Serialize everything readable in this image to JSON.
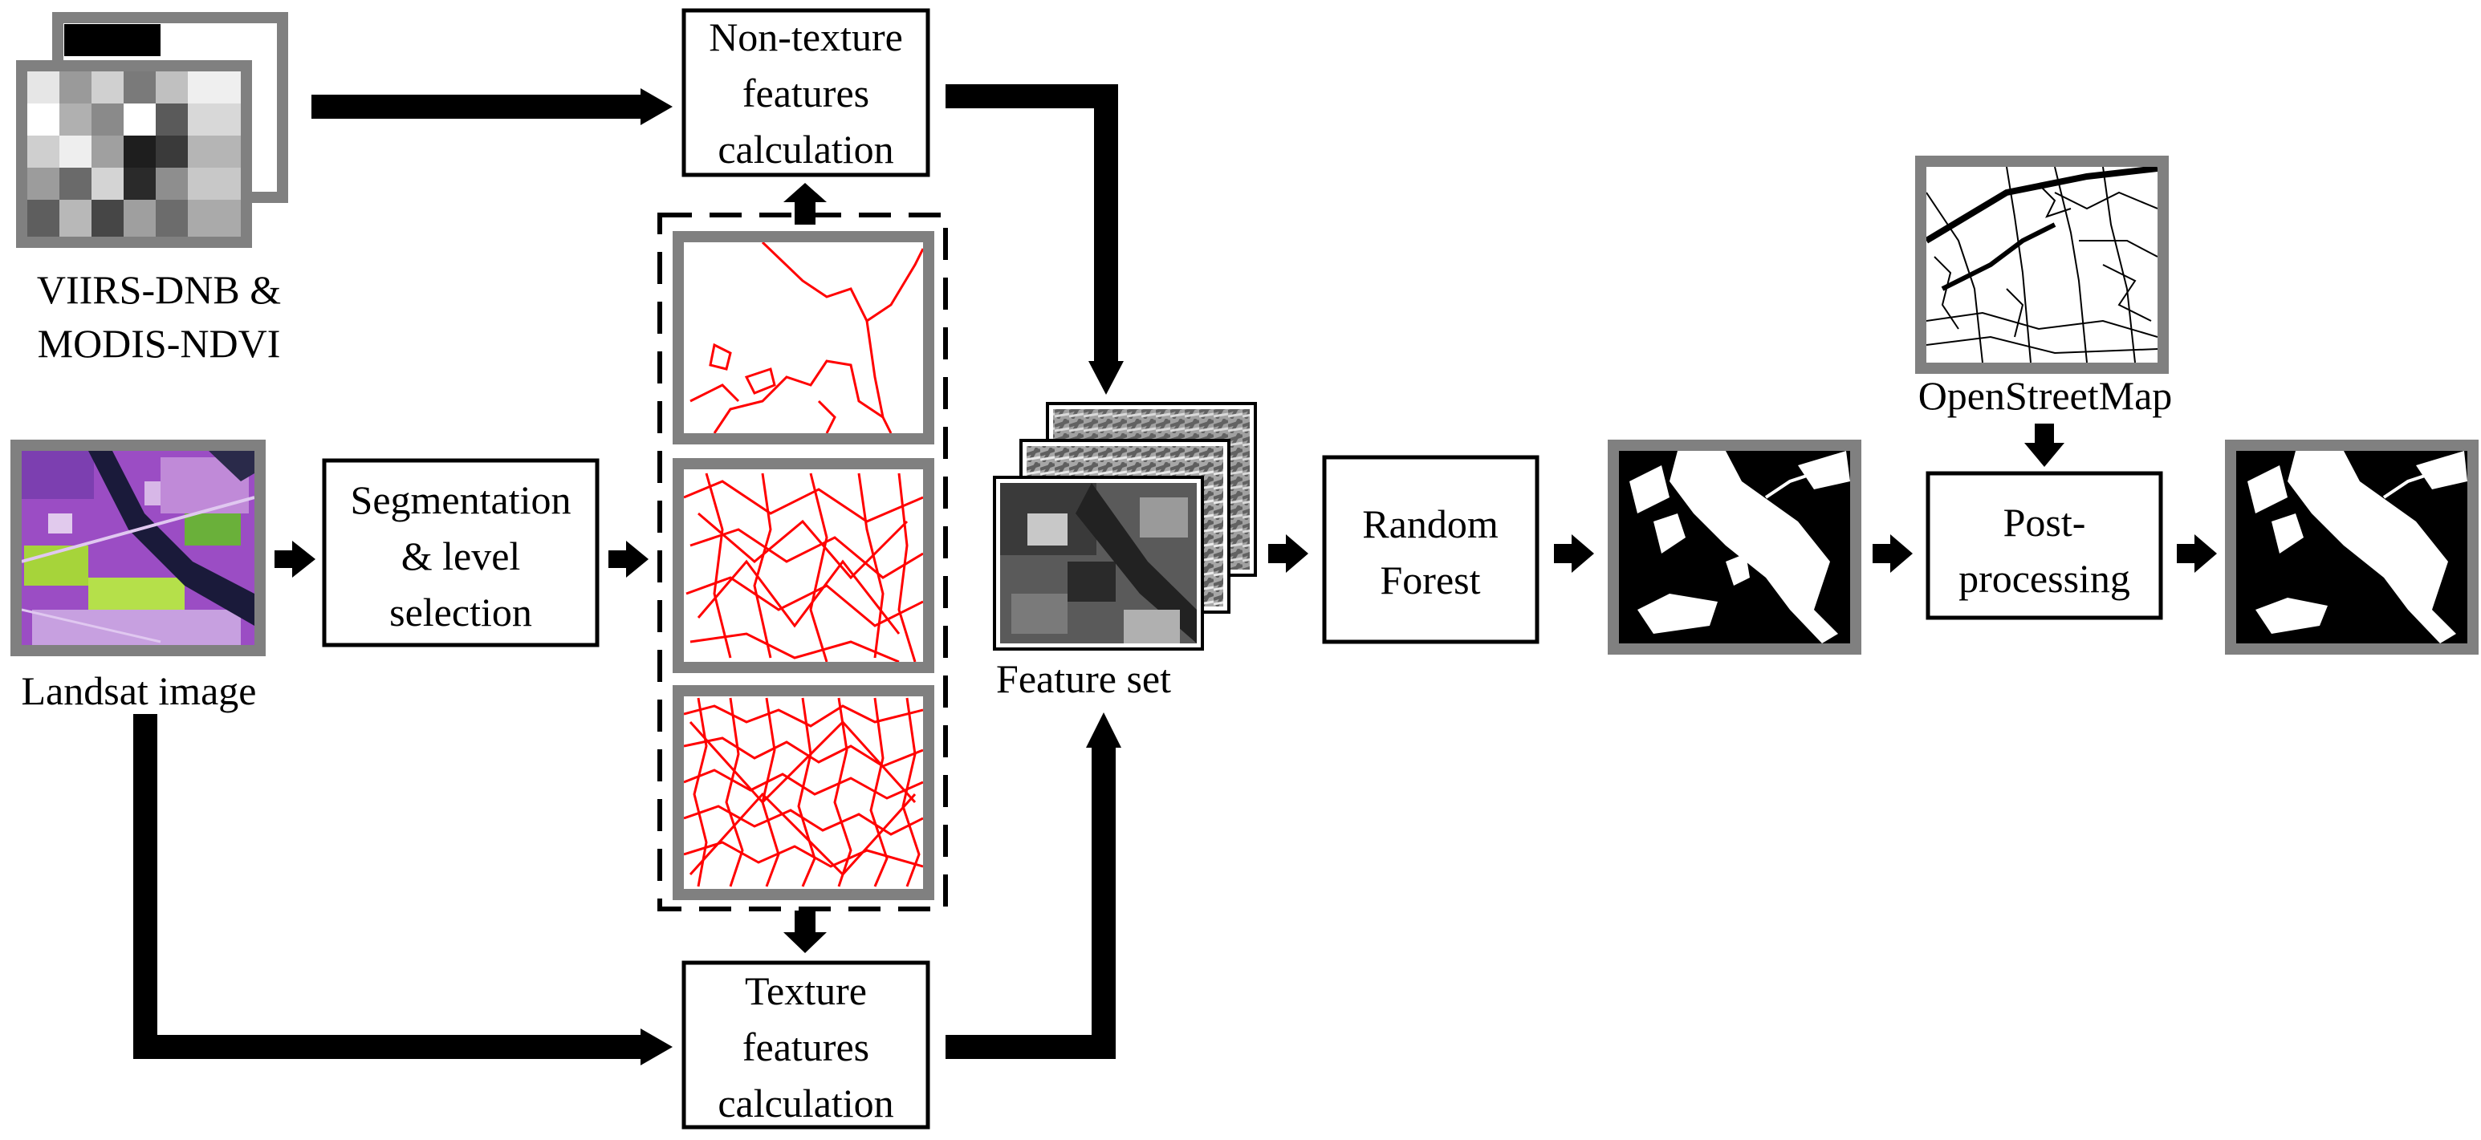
{
  "nodes": {
    "viirs_modis": {
      "label_line1": "VIIRS-DNB &",
      "label_line2": "MODIS-NDVI"
    },
    "landsat": {
      "label": "Landsat image"
    },
    "segmentation": {
      "line1": "Segmentation",
      "line2": "& level",
      "line3": "selection"
    },
    "non_texture": {
      "line1": "Non-texture",
      "line2": "features",
      "line3": "calculation"
    },
    "texture": {
      "line1": "Texture",
      "line2": "features",
      "line3": "calculation"
    },
    "feature_set": {
      "label": "Feature set"
    },
    "random_forest": {
      "line1": "Random",
      "line2": "Forest"
    },
    "osm": {
      "label": "OpenStreetMap"
    },
    "post_processing": {
      "line1": "Post-",
      "line2": "processing"
    }
  },
  "edges": [
    {
      "from": "viirs_modis",
      "to": "non_texture"
    },
    {
      "from": "landsat",
      "to": "segmentation"
    },
    {
      "from": "landsat",
      "to": "texture"
    },
    {
      "from": "segmentation",
      "to": "segmentation_levels"
    },
    {
      "from": "segmentation_levels",
      "to": "non_texture"
    },
    {
      "from": "segmentation_levels",
      "to": "texture"
    },
    {
      "from": "non_texture",
      "to": "feature_set"
    },
    {
      "from": "texture",
      "to": "feature_set"
    },
    {
      "from": "feature_set",
      "to": "random_forest"
    },
    {
      "from": "random_forest",
      "to": "classification_map"
    },
    {
      "from": "classification_map",
      "to": "post_processing"
    },
    {
      "from": "osm",
      "to": "post_processing"
    },
    {
      "from": "post_processing",
      "to": "final_map"
    }
  ],
  "colors": {
    "frame": "#808080",
    "segment_lines": "#ff0000",
    "landsat_purple": "#9b4dc4",
    "landsat_green": "#a6d43a",
    "ink": "#000000"
  }
}
